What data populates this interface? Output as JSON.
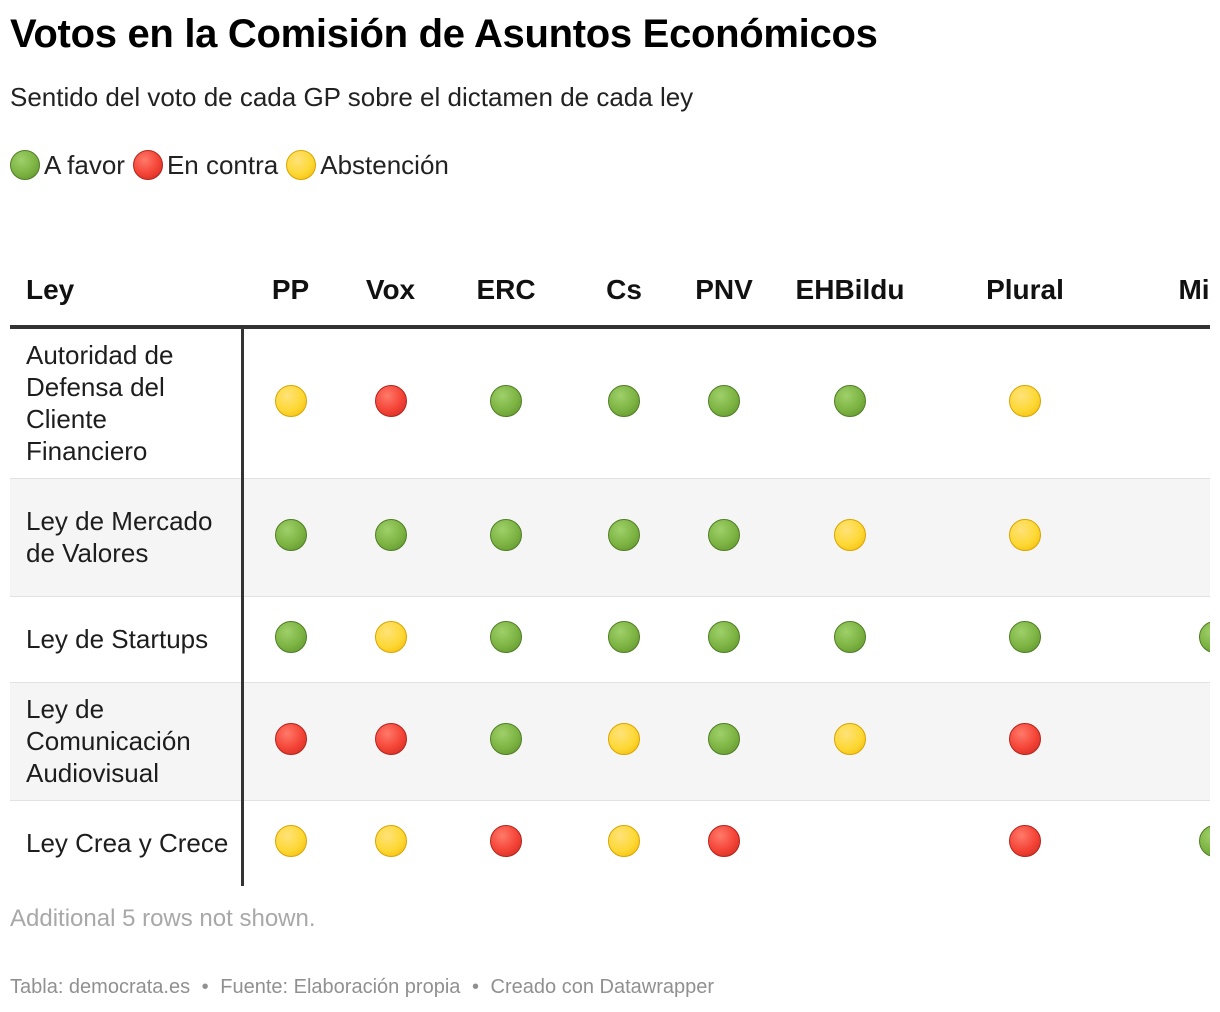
{
  "title": "Votos en la Comisión de Asuntos Económicos",
  "subtitle": "Sentido del voto de cada GP sobre el dictamen de cada ley",
  "legend": [
    {
      "label": "A favor",
      "key": "favor",
      "color": "#7cb342"
    },
    {
      "label": "En contra",
      "key": "contra",
      "color": "#f44336"
    },
    {
      "label": "Abstención",
      "key": "abstencion",
      "color": "#fdd835"
    }
  ],
  "chart_data": {
    "type": "table",
    "columns": [
      "Ley",
      "PP",
      "Vox",
      "ERC",
      "Cs",
      "PNV",
      "EHBildu",
      "Plural",
      "Mixto"
    ],
    "rows": [
      {
        "ley": "Autoridad de Defensa del Cliente Financiero",
        "votes": [
          "abstencion",
          "contra",
          "favor",
          "favor",
          "favor",
          "favor",
          "abstencion",
          ""
        ]
      },
      {
        "ley": "Ley de Mercado de Valores",
        "votes": [
          "favor",
          "favor",
          "favor",
          "favor",
          "favor",
          "abstencion",
          "abstencion",
          ""
        ]
      },
      {
        "ley": "Ley de Startups",
        "votes": [
          "favor",
          "abstencion",
          "favor",
          "favor",
          "favor",
          "favor",
          "favor",
          "favor"
        ]
      },
      {
        "ley": "Ley de Comunicación Audiovisual",
        "votes": [
          "contra",
          "contra",
          "favor",
          "abstencion",
          "favor",
          "abstencion",
          "contra",
          ""
        ]
      },
      {
        "ley": "Ley Crea y Crece",
        "votes": [
          "abstencion",
          "abstencion",
          "contra",
          "abstencion",
          "contra",
          "",
          "contra",
          "favor"
        ]
      }
    ]
  },
  "note": "Additional 5 rows not shown.",
  "footer": {
    "tabla": "Tabla: democrata.es",
    "fuente": "Fuente: Elaboración propia",
    "creado": "Creado con Datawrapper",
    "separator": "•"
  }
}
